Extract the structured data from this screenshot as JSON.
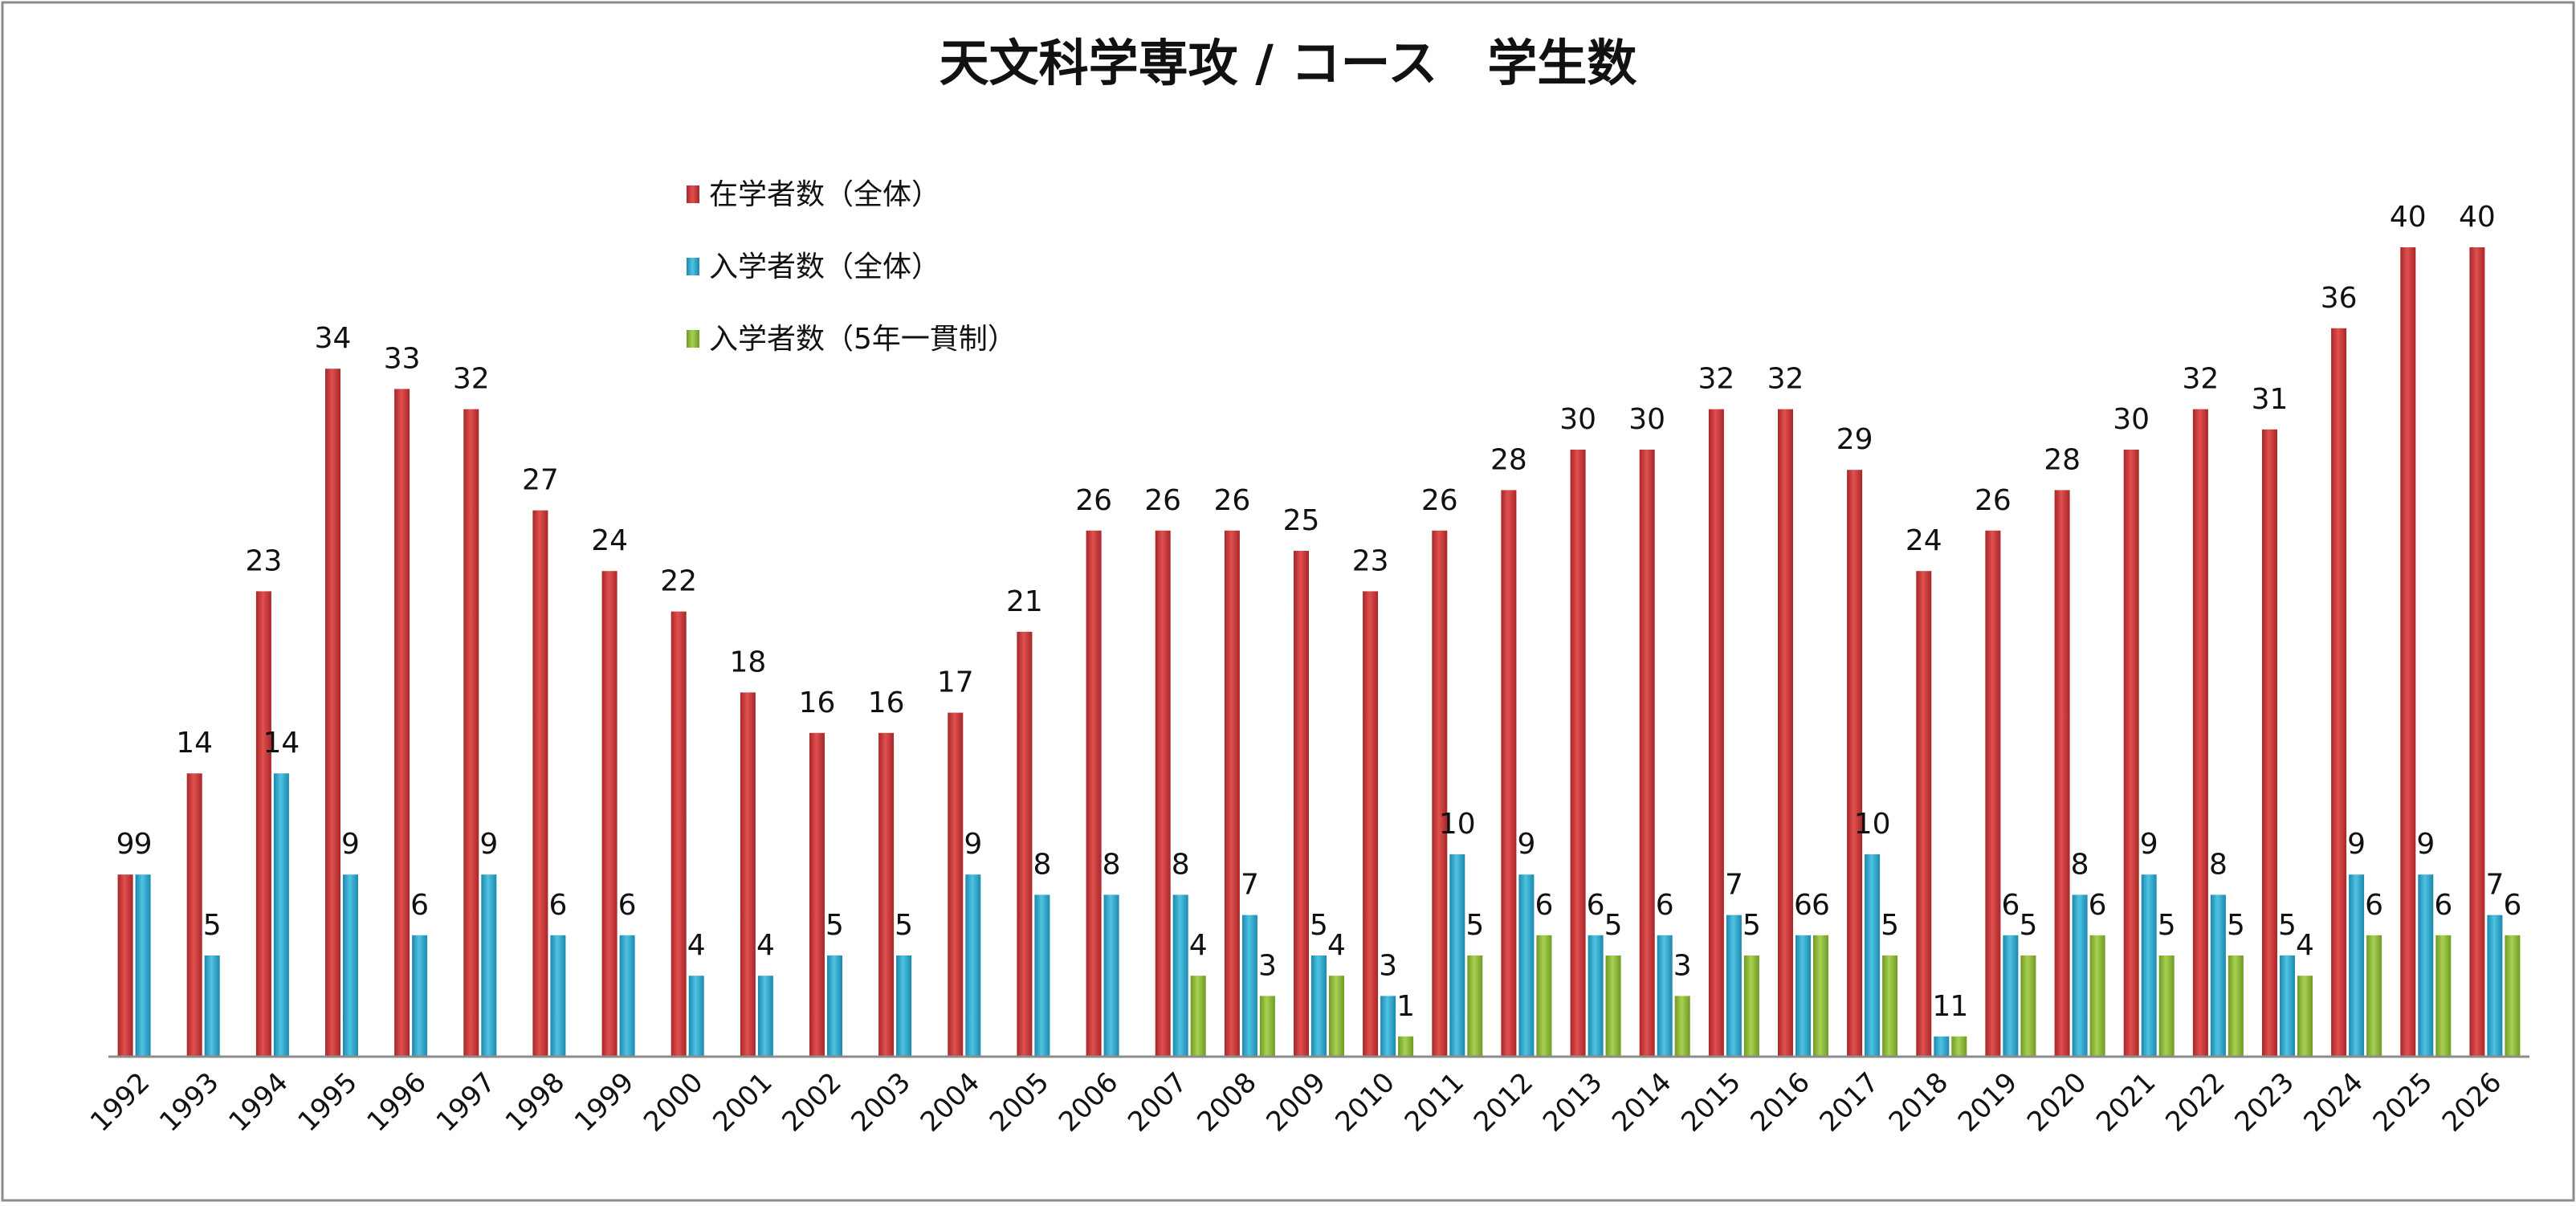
{
  "chart_data": {
    "type": "bar",
    "title": "天文科学専攻 / コース　学生数",
    "xlabel": "",
    "ylabel": "",
    "ylim": [
      0,
      40
    ],
    "grid": false,
    "legend_position": "top-left",
    "categories": [
      "1992",
      "1993",
      "1994",
      "1995",
      "1996",
      "1997",
      "1998",
      "1999",
      "2000",
      "2001",
      "2002",
      "2003",
      "2004",
      "2005",
      "2006",
      "2007",
      "2008",
      "2009",
      "2010",
      "2011",
      "2012",
      "2013",
      "2014",
      "2015",
      "2016",
      "2017",
      "2018",
      "2019",
      "2020",
      "2021",
      "2022",
      "2023",
      "2024",
      "2025",
      "2026"
    ],
    "series": [
      {
        "name": "在学者数（全体）",
        "color": "#c8373a",
        "values": [
          9,
          14,
          23,
          34,
          33,
          32,
          27,
          24,
          22,
          18,
          16,
          16,
          17,
          21,
          26,
          26,
          26,
          25,
          23,
          26,
          28,
          30,
          30,
          32,
          32,
          29,
          24,
          26,
          28,
          30,
          32,
          31,
          36,
          40,
          40
        ],
        "labels": [
          "9",
          "14",
          "23",
          "34",
          "33",
          "32",
          "27",
          "24",
          "22",
          "18",
          "16",
          "16",
          "17",
          "21",
          "26",
          "26",
          "26",
          "25",
          "23",
          "26",
          "28",
          "30",
          "30",
          "32",
          "32",
          "29",
          "24",
          "26",
          "28",
          "30",
          "32",
          "31",
          "36",
          "40",
          "40"
        ]
      },
      {
        "name": "入学者数（全体）",
        "color": "#2fa6c8",
        "values": [
          9,
          5,
          14,
          9,
          6,
          9,
          6,
          6,
          4,
          4,
          5,
          5,
          9,
          8,
          8,
          8,
          7,
          5,
          3,
          10,
          9,
          6,
          6,
          7,
          6,
          10,
          1,
          6,
          8,
          9,
          8,
          5,
          9,
          9,
          7
        ],
        "labels": [
          "9",
          "5",
          "14",
          "9",
          "6",
          "9",
          "6",
          "6",
          "4",
          "4",
          "5",
          "5",
          "9",
          "8",
          "8",
          "8",
          "7",
          "5",
          "3",
          "10",
          "9",
          "6",
          "6",
          "7",
          "6",
          "10",
          "1",
          "6",
          "8",
          "9",
          "8",
          "5",
          "9",
          "9",
          "7"
        ]
      },
      {
        "name": "入学者数（5年一貫制）",
        "color": "#8fb83a",
        "values": [
          null,
          null,
          null,
          null,
          null,
          null,
          null,
          null,
          null,
          null,
          null,
          null,
          null,
          null,
          null,
          4,
          3,
          4,
          1,
          5,
          6,
          5,
          3,
          5,
          6,
          5,
          1,
          5,
          6,
          5,
          5,
          4,
          6,
          6,
          6
        ],
        "labels": [
          "",
          "",
          "",
          "",
          "",
          "",
          "",
          "",
          "",
          "",
          "",
          "",
          "",
          "",
          "",
          "4",
          "3",
          "4",
          "1",
          "5",
          "6",
          "5",
          "3",
          "5",
          "6",
          "5",
          "1",
          "5",
          "6",
          "5",
          "5",
          "4",
          "6",
          "6",
          "6"
        ]
      }
    ]
  }
}
